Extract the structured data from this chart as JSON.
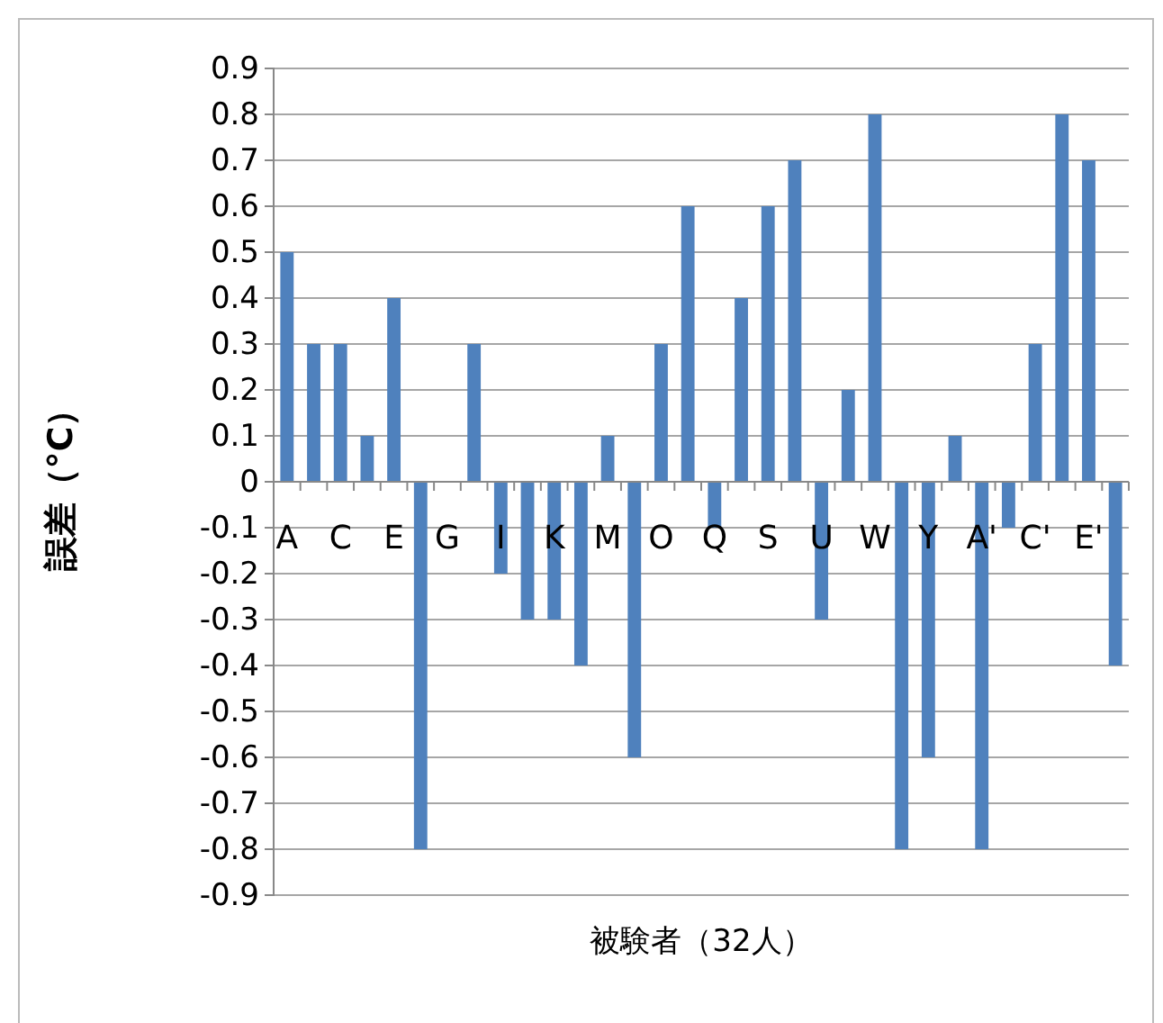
{
  "chart_data": {
    "type": "bar",
    "xlabel": "被験者（32人）",
    "ylabel": "誤差（°C）",
    "categories": [
      "A",
      null,
      "C",
      null,
      "E",
      null,
      "G",
      null,
      "I",
      null,
      "K",
      null,
      "M",
      null,
      "O",
      null,
      "Q",
      null,
      "S",
      null,
      "U",
      null,
      "W",
      null,
      "Y",
      null,
      "A'",
      null,
      "C'",
      null,
      "E'",
      null
    ],
    "values": [
      0.5,
      0.3,
      0.3,
      0.1,
      0.4,
      -0.8,
      0,
      0.3,
      -0.2,
      -0.3,
      -0.3,
      -0.4,
      0.1,
      -0.6,
      0.3,
      0.6,
      -0.1,
      0.4,
      0.6,
      0.7,
      -0.3,
      0.2,
      0.8,
      -0.8,
      -0.6,
      0.1,
      -0.8,
      -0.1,
      0.3,
      0.8,
      0.7,
      -0.4
    ],
    "color": "#4f81bd",
    "ylim": [
      -0.9,
      0.9
    ],
    "yticks": [
      0.9,
      0.8,
      0.7,
      0.6,
      0.5,
      0.4,
      0.3,
      0.2,
      0.1,
      0,
      {
        "value": -0.1,
        "label": "-0.1"
      },
      {
        "value": -0.2,
        "label": "-0.2"
      },
      {
        "value": -0.3,
        "label": "-0.3"
      },
      {
        "value": -0.4,
        "label": "-0.4"
      },
      {
        "value": -0.5,
        "label": "-0.5"
      },
      {
        "value": -0.6,
        "label": "-0.6"
      },
      {
        "value": -0.7,
        "label": "-0.7"
      },
      {
        "value": -0.8,
        "label": "-0.8"
      },
      {
        "value": -0.9,
        "label": "-0.9"
      }
    ],
    "grid": "y"
  }
}
